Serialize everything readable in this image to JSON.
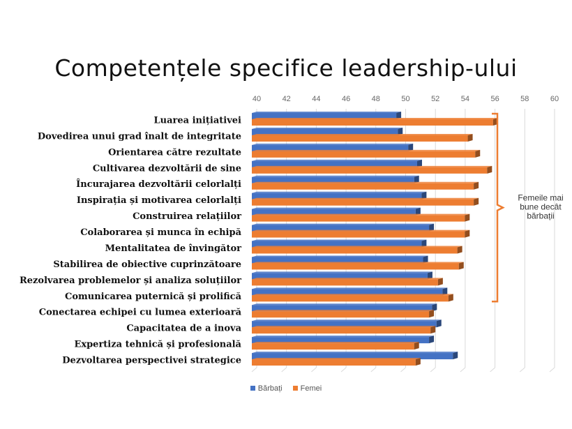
{
  "chart_data": {
    "type": "bar",
    "orientation": "horizontal",
    "title": "Competențele specifice leadership-ului",
    "xlabel": "",
    "ylabel": "",
    "xlim": [
      40,
      60
    ],
    "x_ticks": [
      40,
      42,
      44,
      46,
      48,
      50,
      52,
      54,
      56,
      58,
      60
    ],
    "grid": true,
    "legend_position": "bottom",
    "categories": [
      "Luarea inițiativei",
      "Dovedirea unui grad înalt de integritate",
      "Orientarea către rezultate",
      "Cultivarea dezvoltării de sine",
      "Încurajarea dezvoltării celorlalți",
      "Inspirația  și motivarea celorlalți",
      "Construirea relațiilor",
      "Colaborarea și munca în echipă",
      "Mentalitatea de învingător",
      "Stabilirea de obiective cuprinzătoare",
      "Rezolvarea problemelor și analiza soluțiilor",
      "Comunicarea puternică și prolifică",
      "Conectarea echipei cu lumea exterioară",
      "Capacitatea de a inova",
      "Expertiza tehnică și profesională",
      "Dezvoltarea perspectivei strategice"
    ],
    "series": [
      {
        "name": "Bărbați",
        "color": "#4472c4",
        "values": [
          49.7,
          49.8,
          50.5,
          51.1,
          50.9,
          51.4,
          51.0,
          51.9,
          51.4,
          51.5,
          51.8,
          52.8,
          52.1,
          52.4,
          51.9,
          53.5
        ]
      },
      {
        "name": "Femei",
        "color": "#ed7d31",
        "values": [
          56.2,
          54.5,
          55.0,
          55.8,
          54.9,
          54.9,
          54.3,
          54.3,
          53.8,
          53.9,
          52.5,
          53.2,
          51.9,
          52.0,
          50.9,
          51.0
        ]
      }
    ],
    "annotation": {
      "text": "Femeile mai bune decât bărbații",
      "lines": [
        "Femeile mai",
        "bune decât",
        "bărbații"
      ],
      "color": "#ed7d31",
      "spans_categories": [
        0,
        11
      ]
    }
  }
}
